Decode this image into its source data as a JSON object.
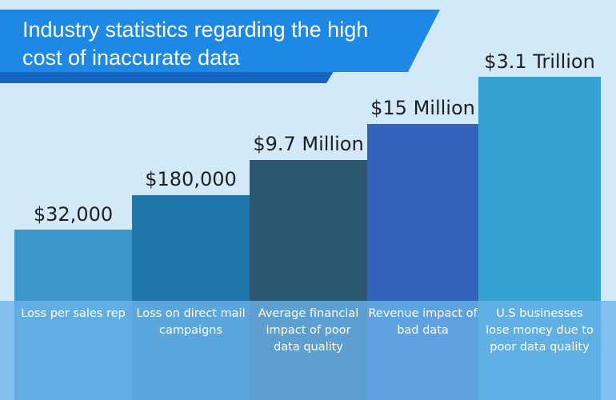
{
  "title": "Industry statistics regarding the high cost of inaccurate data",
  "colors": {
    "background": "#d2e9fa",
    "banner": "#1e88e5",
    "banner_shadow": "#1565c0",
    "base_band": "#6cb3ec"
  },
  "chart_data": {
    "type": "bar",
    "title": "Industry statistics regarding the high cost of inaccurate data",
    "xlabel": "",
    "ylabel": "",
    "grid": false,
    "scale": "illustrative (not to scale)",
    "categories": [
      "Loss per sales rep",
      "Loss on direct mail campaigns",
      "Average financial impact of poor data quality",
      "Revenue impact of bad data",
      "U.S businesses lose money due to poor data quality"
    ],
    "values": [
      32000,
      180000,
      9700000,
      15000000,
      3100000000000
    ],
    "value_labels": [
      "$32,000",
      "$180,000",
      "$9.7 Million",
      "$15 Million",
      "$3.1 Trillion"
    ],
    "bar_colors": [
      "#3d97c8",
      "#1e76aa",
      "#2c5872",
      "#3463ba",
      "#36a2d2"
    ]
  }
}
